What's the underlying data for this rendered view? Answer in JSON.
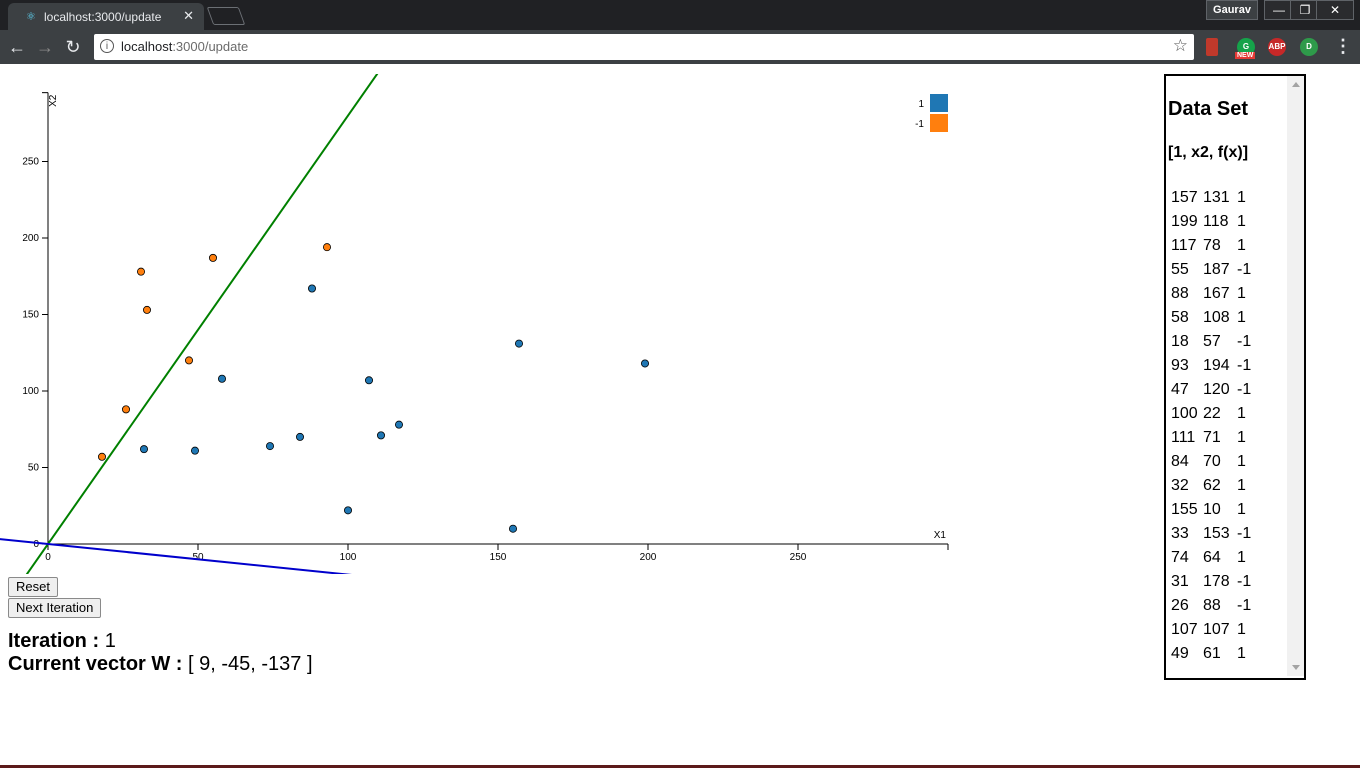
{
  "browser": {
    "tab_title": "localhost:3000/update",
    "tab_close": "✕",
    "profile_name": "Gaurav",
    "url_host": "localhost",
    "url_path": ":3000/update",
    "icons": [
      "back-arrow-icon",
      "forward-arrow-icon",
      "reload-icon",
      "info-icon",
      "star-icon",
      "bookmark-extension-icon",
      "grammarly-extension-icon",
      "adblock-extension-icon",
      "extension-icon",
      "menu-icon"
    ],
    "ext_new_badge": "NEW",
    "ext_abp": "ABP"
  },
  "controls": {
    "reset_label": "Reset",
    "next_label": "Next Iteration"
  },
  "status": {
    "iteration_label": "Iteration :",
    "iteration_value": "1",
    "vector_label": "Current vector W :",
    "vector_value": "[ 9, -45, -137 ]"
  },
  "panel": {
    "title": "Data Set",
    "subtitle": "[1, x2, f(x)]",
    "rows": [
      [
        "157",
        "131",
        "1"
      ],
      [
        "199",
        "118",
        "1"
      ],
      [
        "117",
        "78",
        "1"
      ],
      [
        "55",
        "187",
        "-1"
      ],
      [
        "88",
        "167",
        "1"
      ],
      [
        "58",
        "108",
        "1"
      ],
      [
        "18",
        "57",
        "-1"
      ],
      [
        "93",
        "194",
        "-1"
      ],
      [
        "47",
        "120",
        "-1"
      ],
      [
        "100",
        "22",
        "1"
      ],
      [
        "111",
        "71",
        "1"
      ],
      [
        "84",
        "70",
        "1"
      ],
      [
        "32",
        "62",
        "1"
      ],
      [
        "155",
        "10",
        "1"
      ],
      [
        "33",
        "153",
        "-1"
      ],
      [
        "74",
        "64",
        "1"
      ],
      [
        "31",
        "178",
        "-1"
      ],
      [
        "26",
        "88",
        "-1"
      ],
      [
        "107",
        "107",
        "1"
      ],
      [
        "49",
        "61",
        "1"
      ]
    ]
  },
  "chart_data": {
    "type": "scatter",
    "xlabel": "X1",
    "ylabel": "X2",
    "xlim": [
      0,
      300
    ],
    "ylim": [
      0,
      295
    ],
    "xticks": [
      0,
      50,
      100,
      150,
      200,
      250
    ],
    "yticks": [
      0,
      50,
      100,
      150,
      200,
      250
    ],
    "colors": {
      "1": "#1f77b4",
      "-1": "#ff7f0e"
    },
    "legend": {
      "position": "top-right",
      "entries": [
        {
          "label": "1",
          "color": "#1f77b4"
        },
        {
          "label": "-1",
          "color": "#ff7f0e"
        }
      ]
    },
    "points": [
      {
        "x": 157,
        "y": 131,
        "label": 1
      },
      {
        "x": 199,
        "y": 118,
        "label": 1
      },
      {
        "x": 117,
        "y": 78,
        "label": 1
      },
      {
        "x": 55,
        "y": 187,
        "label": -1
      },
      {
        "x": 88,
        "y": 167,
        "label": 1
      },
      {
        "x": 58,
        "y": 108,
        "label": 1
      },
      {
        "x": 18,
        "y": 57,
        "label": -1
      },
      {
        "x": 93,
        "y": 194,
        "label": -1
      },
      {
        "x": 47,
        "y": 120,
        "label": -1
      },
      {
        "x": 100,
        "y": 22,
        "label": 1
      },
      {
        "x": 111,
        "y": 71,
        "label": 1
      },
      {
        "x": 84,
        "y": 70,
        "label": 1
      },
      {
        "x": 32,
        "y": 62,
        "label": 1
      },
      {
        "x": 155,
        "y": 10,
        "label": 1
      },
      {
        "x": 33,
        "y": 153,
        "label": -1
      },
      {
        "x": 74,
        "y": 64,
        "label": 1
      },
      {
        "x": 31,
        "y": 178,
        "label": -1
      },
      {
        "x": 26,
        "y": 88,
        "label": -1
      },
      {
        "x": 107,
        "y": 107,
        "label": 1
      },
      {
        "x": 49,
        "y": 61,
        "label": 1
      }
    ],
    "lines": [
      {
        "color": "#008000",
        "slope": 2.8,
        "intercept": 0
      },
      {
        "color": "#0000cc",
        "slope": -0.2,
        "intercept": 0
      }
    ]
  }
}
